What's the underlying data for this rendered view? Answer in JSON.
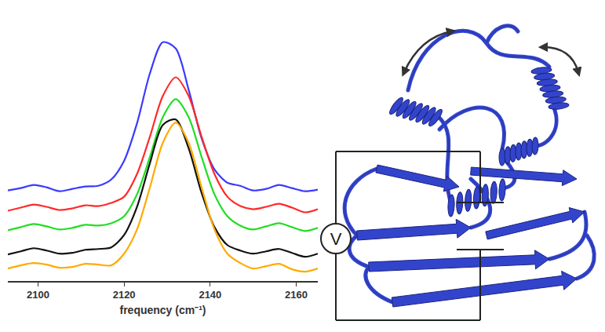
{
  "chart_data": {
    "type": "line",
    "x": [
      2093,
      2096,
      2099,
      2102,
      2105,
      2108,
      2111,
      2114,
      2117,
      2120,
      2123,
      2126,
      2129,
      2132,
      2135,
      2138,
      2141,
      2144,
      2147,
      2150,
      2153,
      2156,
      2159,
      2162,
      2165
    ],
    "series": [
      {
        "color": "#3a3aff",
        "values": [
          11.6,
          11.9,
          12.3,
          12.0,
          11.5,
          11.8,
          12.1,
          12.2,
          13.0,
          15.4,
          20.2,
          26.6,
          30.6,
          29.8,
          24.5,
          18.3,
          14.3,
          12.6,
          12.2,
          11.6,
          11.8,
          12.3,
          11.9,
          11.5,
          11.7
        ]
      },
      {
        "color": "#ff2a2a",
        "values": [
          9.0,
          9.4,
          9.8,
          9.5,
          9.1,
          9.3,
          9.7,
          9.6,
          10.0,
          10.8,
          13.7,
          18.5,
          23.7,
          26.1,
          23.7,
          18.5,
          13.7,
          10.8,
          9.6,
          9.2,
          9.5,
          9.9,
          9.4,
          8.8,
          9.2
        ]
      },
      {
        "color": "#22dd22",
        "values": [
          6.5,
          6.9,
          7.3,
          7.0,
          6.6,
          6.8,
          7.2,
          7.1,
          7.4,
          8.3,
          11.1,
          15.9,
          21.0,
          23.3,
          21.0,
          15.9,
          11.1,
          8.3,
          7.1,
          6.6,
          7.0,
          7.4,
          6.9,
          6.4,
          6.8
        ]
      },
      {
        "color": "#111111",
        "values": [
          3.4,
          3.8,
          4.2,
          3.9,
          3.5,
          3.6,
          4.0,
          4.1,
          4.3,
          5.9,
          9.5,
          15.1,
          20.0,
          20.7,
          17.0,
          11.3,
          6.9,
          4.6,
          3.9,
          3.5,
          3.8,
          4.1,
          3.6,
          3.1,
          3.5
        ]
      },
      {
        "color": "#ffaa00",
        "values": [
          1.6,
          2.0,
          2.3,
          2.1,
          1.7,
          1.8,
          2.2,
          2.1,
          2.0,
          3.5,
          6.6,
          12.0,
          17.7,
          20.3,
          17.7,
          12.0,
          6.6,
          3.5,
          2.3,
          1.6,
          1.9,
          2.2,
          1.5,
          1.2,
          1.6
        ]
      }
    ],
    "xlim": [
      2093,
      2165
    ],
    "xticks": [
      2100,
      2120,
      2140,
      2160
    ],
    "ylim": [
      0,
      35
    ],
    "xlabel": "frequency (cm⁻¹)",
    "tick_labels": "x",
    "grid": false
  },
  "diagram": {
    "source_label": "V"
  }
}
